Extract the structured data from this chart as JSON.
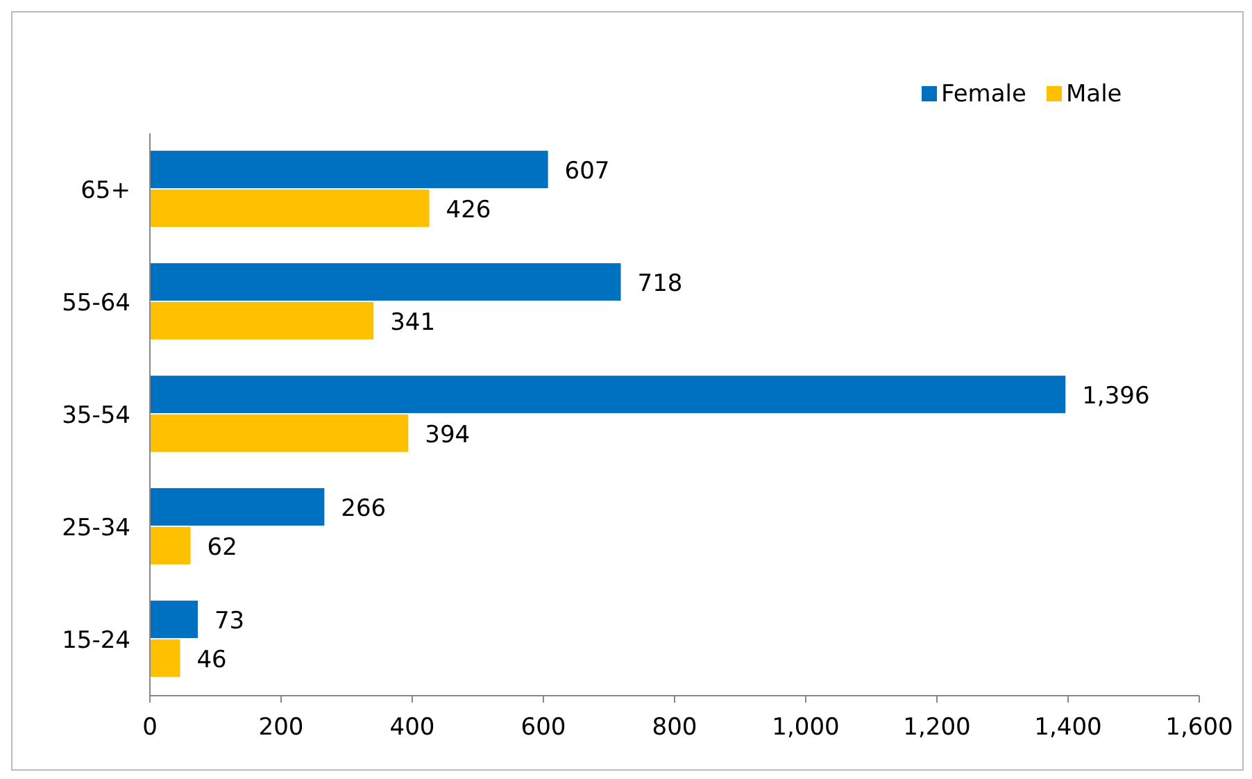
{
  "chart_data": {
    "type": "bar",
    "orientation": "horizontal",
    "categories": [
      "65+",
      "55-64",
      "35-54",
      "25-34",
      "15-24"
    ],
    "series": [
      {
        "name": "Female",
        "color": "#0070c0",
        "values": [
          607,
          718,
          1396,
          266,
          73
        ],
        "value_labels": [
          "607",
          "718",
          "1,396",
          "266",
          "73"
        ]
      },
      {
        "name": "Male",
        "color": "#ffc000",
        "values": [
          426,
          341,
          394,
          62,
          46
        ],
        "value_labels": [
          "426",
          "341",
          "394",
          "62",
          "46"
        ]
      }
    ],
    "xlim": [
      0,
      1600
    ],
    "xticks": [
      0,
      200,
      400,
      600,
      800,
      {
        "value": 1000,
        "label": "1,000"
      },
      {
        "value": 1200,
        "label": "1,200"
      },
      {
        "value": 1400,
        "label": "1,400"
      },
      {
        "value": 1600,
        "label": "1,600"
      }
    ],
    "legend": "top right",
    "grid": false
  }
}
